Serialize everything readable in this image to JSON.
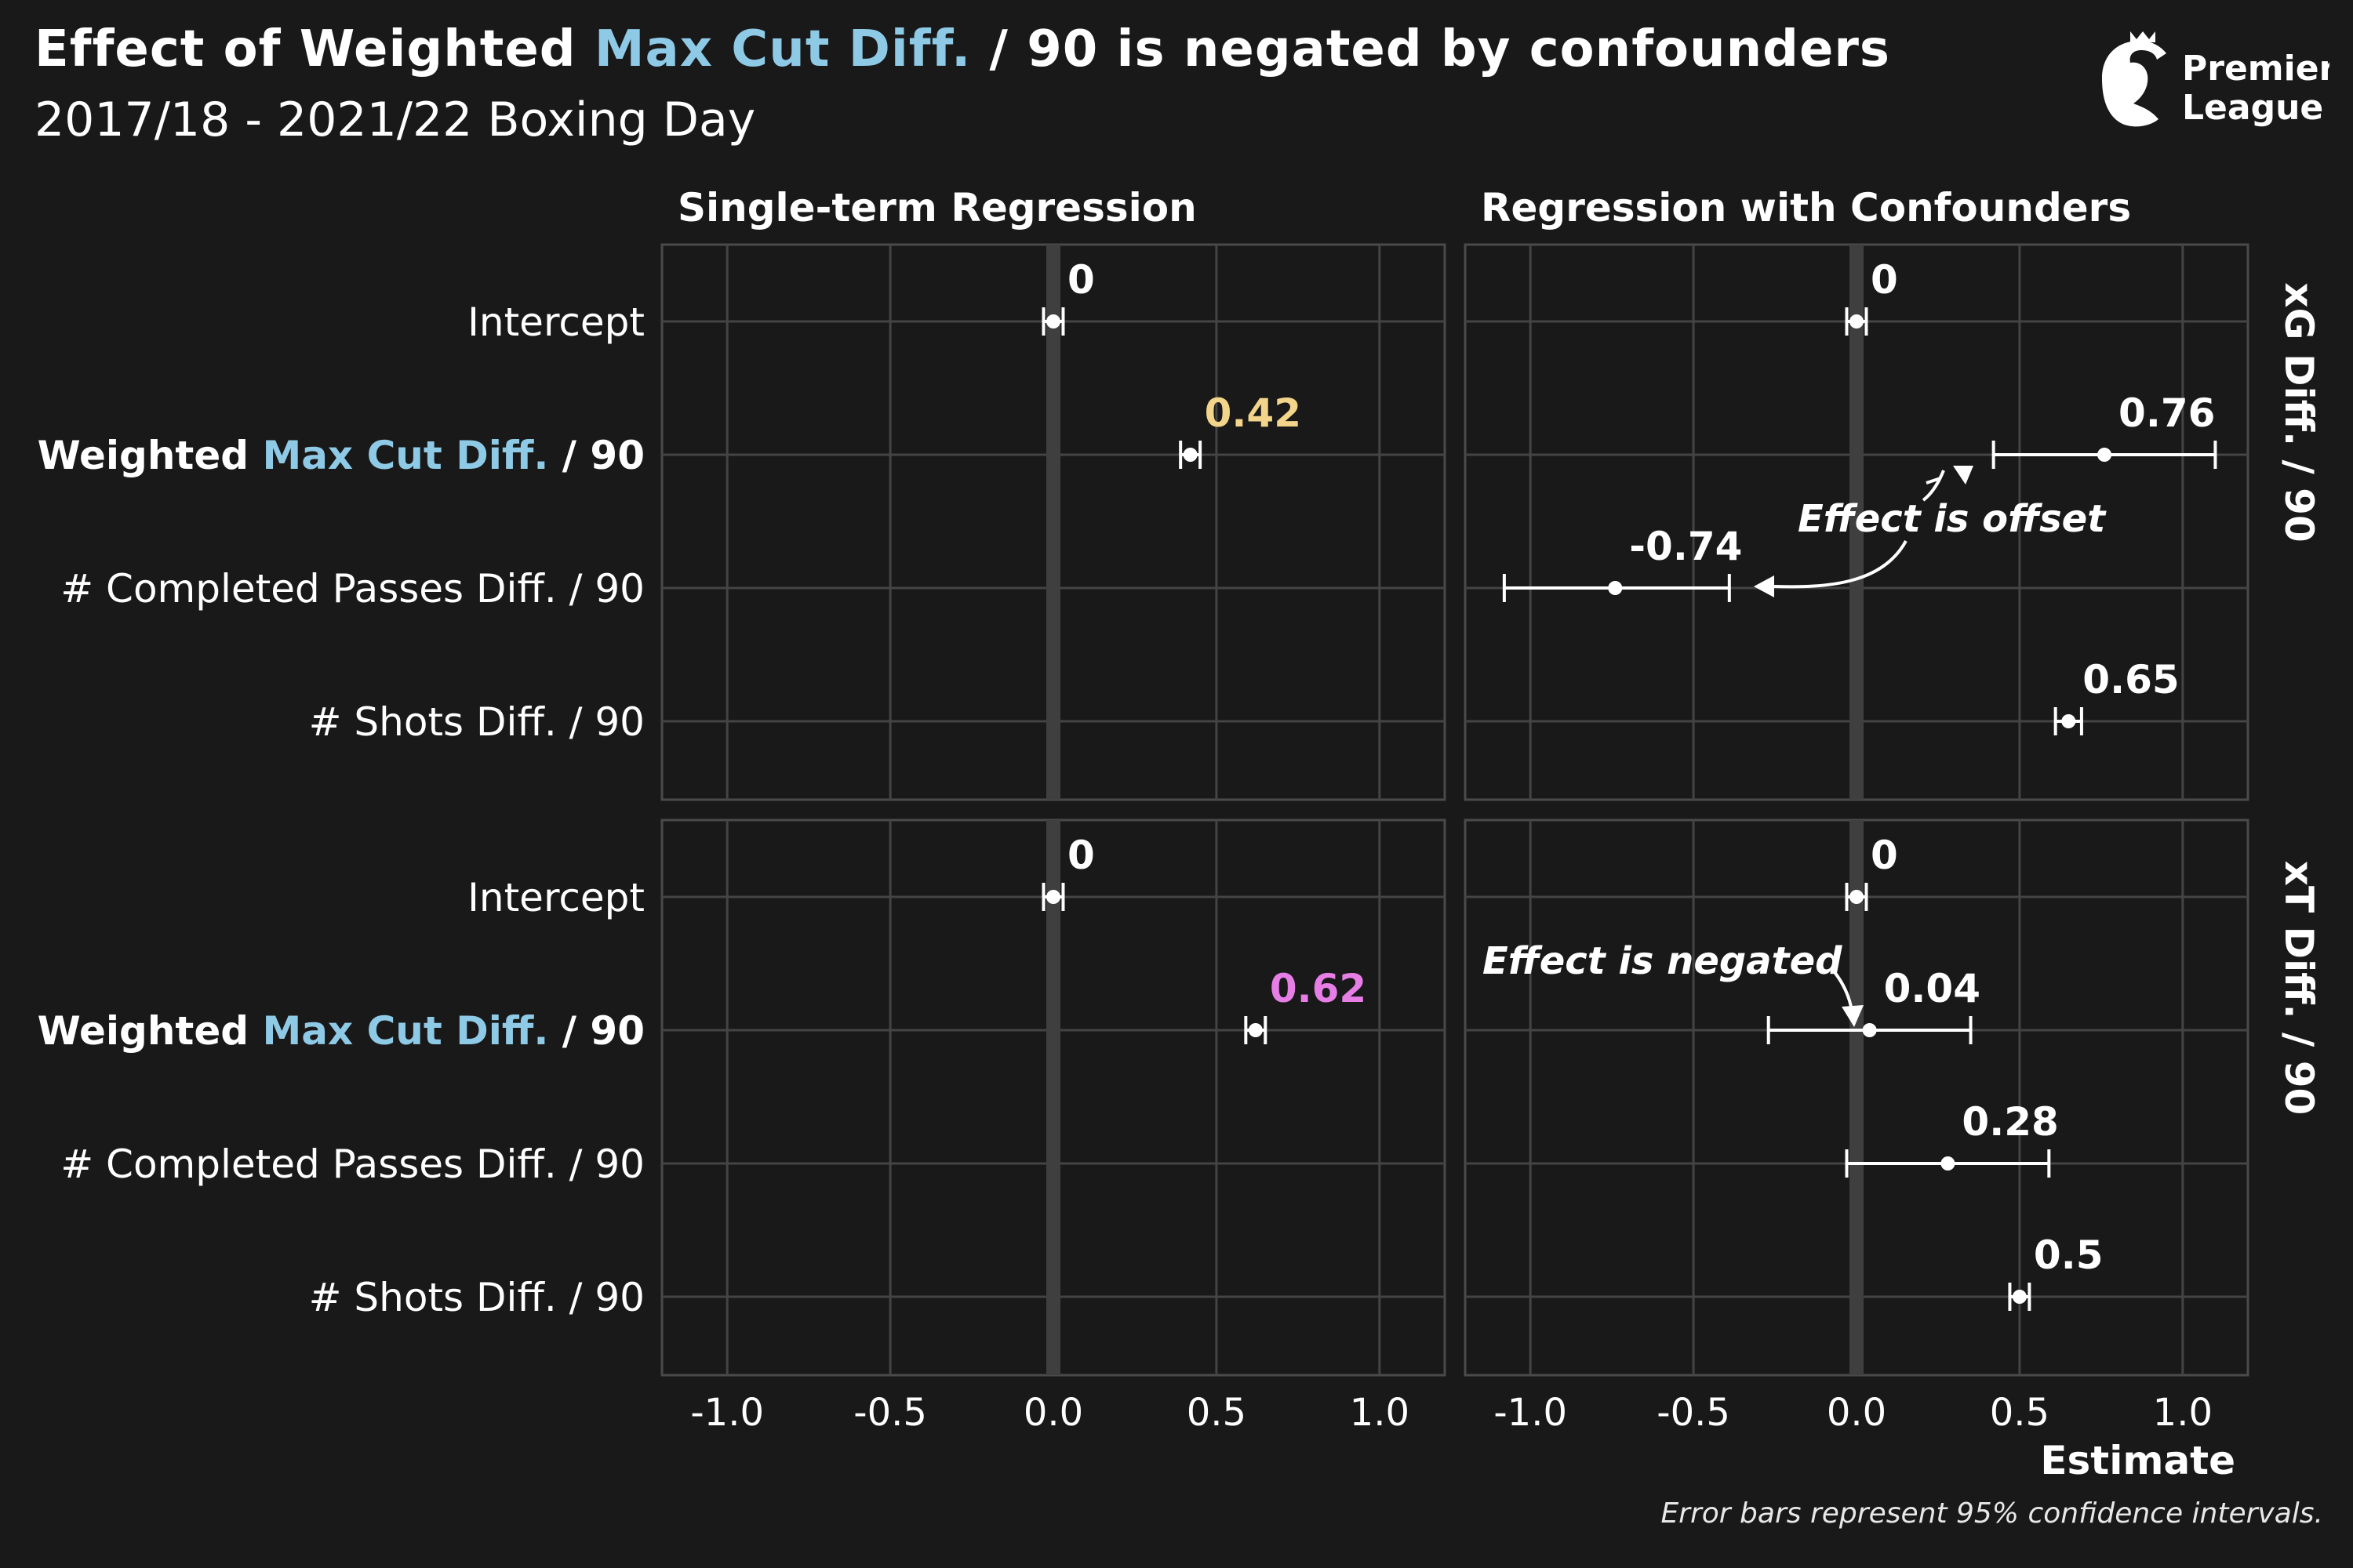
{
  "title": {
    "part1": "Effect of Weighted ",
    "highlight": "Max Cut Diff.",
    "part2": " / 90 is negated by confounders"
  },
  "subtitle": "2017/18 - 2021/22 Boxing Day",
  "logo": {
    "line1": "Premier",
    "line2": "League"
  },
  "footnote": "Error bars represent 95% confidence intervals.",
  "colors": {
    "background": "#191919",
    "panel_border": "#4a4a4a",
    "grid": "#444444",
    "zero_line": "#3f3f3f",
    "highlight_blue": "#8ecae6",
    "highlight_gold": "#f2d48a",
    "highlight_pink": "#e67ee6",
    "text": "#ffffff"
  },
  "chart_data": {
    "type": "scatter",
    "subtype": "coefficient-plot-with-error-bars",
    "column_titles": [
      "Single-term Regression",
      "Regression with Confounders"
    ],
    "row_titles": [
      "xG Diff. / 90",
      "xT Diff. / 90"
    ],
    "terms": [
      "Intercept",
      "Weighted Max Cut Diff. / 90",
      "# Completed Passes Diff. / 90",
      "# Shots Diff. / 90"
    ],
    "xlabel": "Estimate",
    "ylabel": "",
    "xlim": [
      -1.2,
      1.2
    ],
    "xticks": [
      -1.0,
      -0.5,
      0.0,
      0.5,
      1.0
    ],
    "xtick_labels": [
      "-1.0",
      "-0.5",
      "0.0",
      "0.5",
      "1.0"
    ],
    "grid": true,
    "panels": [
      {
        "row": 0,
        "col": 0,
        "points": [
          {
            "term": 0,
            "estimate": 0.0,
            "lo": -0.03,
            "hi": 0.03,
            "label": "0",
            "label_color": "#ffffff"
          },
          {
            "term": 1,
            "estimate": 0.42,
            "lo": 0.39,
            "hi": 0.45,
            "label": "0.42",
            "label_color": "#f2d48a"
          }
        ]
      },
      {
        "row": 0,
        "col": 1,
        "points": [
          {
            "term": 0,
            "estimate": 0.0,
            "lo": -0.03,
            "hi": 0.03,
            "label": "0",
            "label_color": "#ffffff"
          },
          {
            "term": 1,
            "estimate": 0.76,
            "lo": 0.42,
            "hi": 1.1,
            "label": "0.76",
            "label_color": "#ffffff"
          },
          {
            "term": 2,
            "estimate": -0.74,
            "lo": -1.08,
            "hi": -0.39,
            "label": "-0.74",
            "label_color": "#ffffff"
          },
          {
            "term": 3,
            "estimate": 0.65,
            "lo": 0.61,
            "hi": 0.69,
            "label": "0.65",
            "label_color": "#ffffff"
          }
        ]
      },
      {
        "row": 1,
        "col": 0,
        "points": [
          {
            "term": 0,
            "estimate": 0.0,
            "lo": -0.03,
            "hi": 0.03,
            "label": "0",
            "label_color": "#ffffff"
          },
          {
            "term": 1,
            "estimate": 0.62,
            "lo": 0.59,
            "hi": 0.65,
            "label": "0.62",
            "label_color": "#e67ee6"
          }
        ]
      },
      {
        "row": 1,
        "col": 1,
        "points": [
          {
            "term": 0,
            "estimate": 0.0,
            "lo": -0.03,
            "hi": 0.03,
            "label": "0",
            "label_color": "#ffffff"
          },
          {
            "term": 1,
            "estimate": 0.04,
            "lo": -0.27,
            "hi": 0.35,
            "label": "0.04",
            "label_color": "#ffffff"
          },
          {
            "term": 2,
            "estimate": 0.28,
            "lo": -0.03,
            "hi": 0.59,
            "label": "0.28",
            "label_color": "#ffffff"
          },
          {
            "term": 3,
            "estimate": 0.5,
            "lo": 0.47,
            "hi": 0.53,
            "label": "0.5",
            "label_color": "#ffffff"
          }
        ]
      }
    ],
    "annotations": [
      {
        "text": "Effect is offset",
        "panel_row": 0,
        "panel_col": 1
      },
      {
        "text": "Effect is negated",
        "panel_row": 1,
        "panel_col": 1
      }
    ]
  }
}
